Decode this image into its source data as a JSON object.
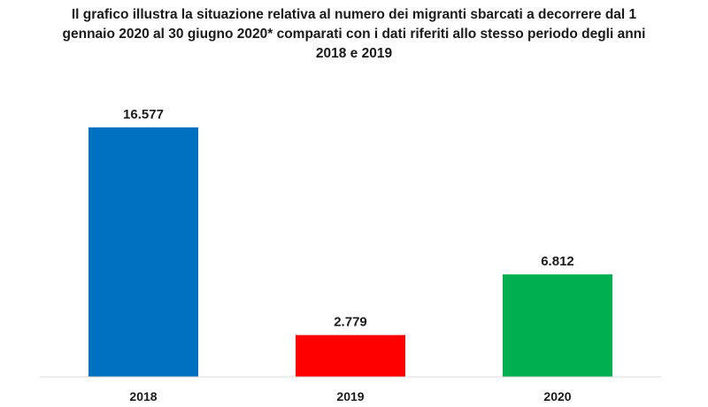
{
  "chart_data": {
    "type": "bar",
    "title": "Il grafico illustra la situazione relativa al numero dei migranti sbarcati a decorrere dal 1 gennaio 2020 al 30 giugno 2020* comparati con i dati riferiti allo stesso periodo degli anni 2018  e 2019",
    "categories": [
      "2018",
      "2019",
      "2020"
    ],
    "values": [
      16577,
      2779,
      6812
    ],
    "value_labels": [
      "16.577",
      "2.779",
      "6.812"
    ],
    "colors": [
      "#0070C0",
      "#FF0000",
      "#00B050"
    ],
    "xlabel": "",
    "ylabel": "",
    "ylim": [
      0,
      18000
    ],
    "grid": false,
    "legend": "none"
  }
}
